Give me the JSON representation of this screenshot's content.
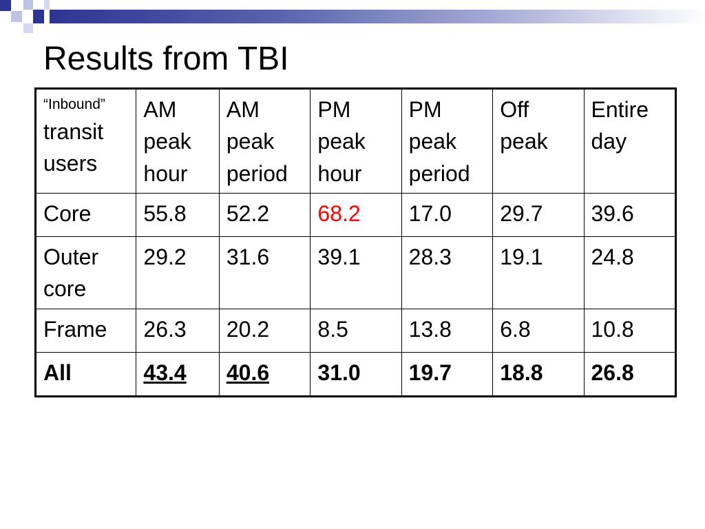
{
  "slide": {
    "title": "Results from TBI"
  },
  "table": {
    "header": {
      "row_label_small": "“Inbound”",
      "row_label_rest": "transit\nusers",
      "columns": [
        "AM\npeak\nhour",
        "AM\npeak\nperiod",
        "PM\npeak\nhour",
        "PM\npeak\nperiod",
        "Off\npeak",
        "Entire\nday"
      ]
    },
    "rows": [
      {
        "label": "Core",
        "values": [
          "55.8",
          "52.2",
          "68.2",
          "17.0",
          "29.7",
          "39.6"
        ],
        "highlight_index": 2,
        "highlight_color": "#ff0000"
      },
      {
        "label": "Outer\ncore",
        "values": [
          "29.2",
          "31.6",
          "39.1",
          "28.3",
          "19.1",
          "24.8"
        ]
      },
      {
        "label": "Frame",
        "values": [
          "26.3",
          "20.2",
          "8.5",
          "13.8",
          "6.8",
          "10.8"
        ]
      },
      {
        "label": "All",
        "values": [
          "43.4",
          "40.6",
          "31.0",
          "19.7",
          "18.8",
          "26.8"
        ],
        "bold": true,
        "underlined_indices": [
          0,
          1
        ]
      }
    ]
  },
  "colors": {
    "accent_dark": "#2d3593",
    "accent_light": "#bfc3e3",
    "highlight": "#ff0000"
  }
}
